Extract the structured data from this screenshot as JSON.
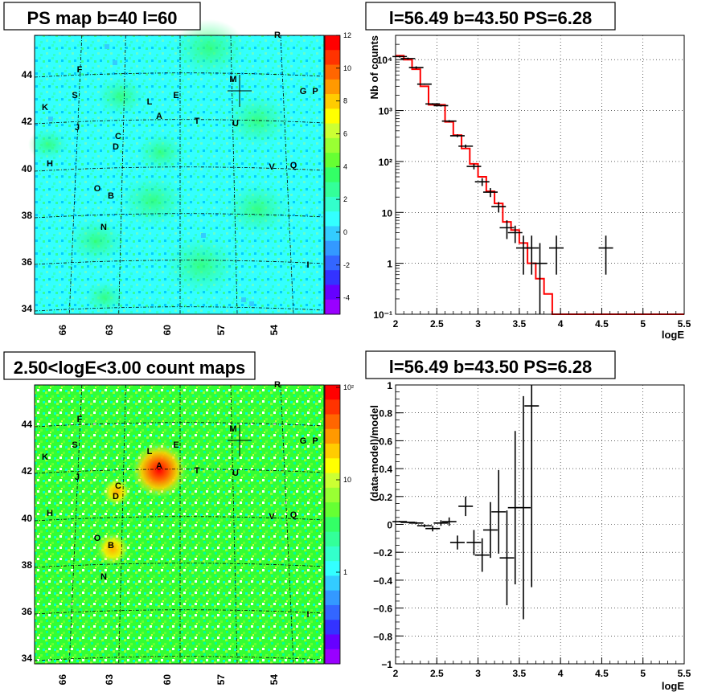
{
  "chart_data": [
    {
      "type": "heatmap",
      "title": "PS map b=40 l=60",
      "x_tick_labels": [
        "66",
        "63",
        "60",
        "57",
        "54"
      ],
      "y_tick_labels": [
        "44",
        "42",
        "40",
        "38",
        "36",
        "34"
      ],
      "colorbar_labels": [
        "12",
        "10",
        "8",
        "6",
        "4",
        "2",
        "0",
        "-2",
        "-4"
      ],
      "colorbar_range": [
        -5,
        12
      ],
      "source_labels": [
        "R",
        "F",
        "M",
        "G",
        "P",
        "S",
        "E",
        "L",
        "K",
        "A",
        "T",
        "J",
        "U",
        "C",
        "D",
        "H",
        "V",
        "Q",
        "O",
        "B",
        "N",
        "I"
      ],
      "crosshair_source": "M",
      "colors": {
        "cyan_background": "#33ffff",
        "green_patches": "#33ff66"
      }
    },
    {
      "type": "line",
      "title": "l=56.49 b=43.50 PS=6.28",
      "xlabel": "logE",
      "ylabel": "Nb of counts",
      "xlim": [
        2,
        5.5
      ],
      "ylim": [
        0.1,
        30000
      ],
      "yscale": "log",
      "grid": true,
      "x_tick_labels": [
        "2",
        "2.5",
        "3",
        "3.5",
        "4",
        "4.5",
        "5",
        "5.5"
      ],
      "y_tick_labels": [
        "10⁻¹",
        "1",
        "10",
        "10²",
        "10³",
        "10⁴"
      ],
      "series": [
        {
          "kind": "model-step",
          "color": "#ff0000",
          "x_edges": [
            2.0,
            2.1,
            2.2,
            2.3,
            2.4,
            2.5,
            2.6,
            2.7,
            2.8,
            2.9,
            3.0,
            3.1,
            3.2,
            3.3,
            3.4,
            3.5,
            3.6,
            3.7,
            3.8,
            3.9,
            4.0,
            5.5
          ],
          "values": [
            12000,
            10000,
            6500,
            3000,
            1300,
            1300,
            600,
            330,
            180,
            90,
            50,
            26,
            15,
            6.5,
            4.5,
            2.5,
            1.0,
            0.5,
            0.25,
            0.1,
            0.1
          ]
        },
        {
          "kind": "data-points",
          "color": "#000000",
          "x": [
            2.05,
            2.15,
            2.25,
            2.35,
            2.45,
            2.55,
            2.65,
            2.75,
            2.85,
            2.95,
            3.05,
            3.15,
            3.25,
            3.35,
            3.45,
            3.55,
            3.65,
            3.75,
            3.95,
            4.55
          ],
          "y": [
            11500,
            10500,
            7000,
            3300,
            1350,
            1250,
            620,
            320,
            200,
            80,
            40,
            25,
            13,
            5,
            4,
            2,
            2,
            1,
            2,
            2
          ],
          "y_low": [
            11000,
            10000,
            6600,
            3200,
            1300,
            1200,
            590,
            300,
            185,
            70,
            33,
            20,
            10,
            3,
            2.5,
            0.6,
            0.6,
            0.1,
            0.6,
            0.6
          ],
          "y_high": [
            12000,
            11000,
            7400,
            3400,
            1400,
            1300,
            650,
            340,
            215,
            90,
            47,
            30,
            16,
            7,
            5.5,
            3.5,
            3.5,
            2.5,
            3.5,
            3.5
          ]
        }
      ]
    },
    {
      "type": "heatmap",
      "title": "2.50<logE<3.00 count maps",
      "x_tick_labels": [
        "66",
        "63",
        "60",
        "57",
        "54"
      ],
      "y_tick_labels": [
        "44",
        "42",
        "40",
        "38",
        "36",
        "34"
      ],
      "colorbar_labels": [
        "10²",
        "10",
        "1"
      ],
      "colorbar_scale": "log",
      "source_labels": [
        "R",
        "F",
        "M",
        "G",
        "P",
        "S",
        "E",
        "L",
        "K",
        "A",
        "T",
        "J",
        "U",
        "C",
        "D",
        "H",
        "V",
        "Q",
        "O",
        "B",
        "N",
        "I"
      ],
      "crosshair_source": "M",
      "colors": {
        "green_background": "#33ff33",
        "hot_spot": "#ff3300"
      }
    },
    {
      "type": "scatter",
      "title": "l=56.49 b=43.50 PS=6.28",
      "xlabel": "logE",
      "ylabel": "(data-model)/model",
      "xlim": [
        2,
        5.5
      ],
      "ylim": [
        -1,
        1
      ],
      "grid": true,
      "x_tick_labels": [
        "2",
        "2.5",
        "3",
        "3.5",
        "4",
        "4.5",
        "5",
        "5.5"
      ],
      "y_tick_labels": [
        "−1",
        "−0.8",
        "−0.6",
        "−0.4",
        "−0.2",
        "0",
        "0.2",
        "0.4",
        "0.6",
        "0.8",
        "1"
      ],
      "series": [
        {
          "kind": "residuals",
          "color": "#000000",
          "x": [
            2.05,
            2.15,
            2.25,
            2.35,
            2.45,
            2.55,
            2.65,
            2.75,
            2.85,
            2.95,
            3.05,
            3.15,
            3.25,
            3.35,
            3.45,
            3.55,
            3.65
          ],
          "y": [
            0.02,
            0.015,
            0.01,
            -0.01,
            -0.03,
            0.01,
            0.02,
            -0.13,
            0.13,
            -0.13,
            -0.22,
            -0.04,
            0.09,
            -0.24,
            0.12,
            0.12,
            0.85
          ],
          "err": [
            0.005,
            0.005,
            0.008,
            0.01,
            0.02,
            0.02,
            0.03,
            0.05,
            0.07,
            0.09,
            0.12,
            0.2,
            0.3,
            0.34,
            0.55,
            0.8,
            1.3
          ]
        }
      ]
    }
  ]
}
